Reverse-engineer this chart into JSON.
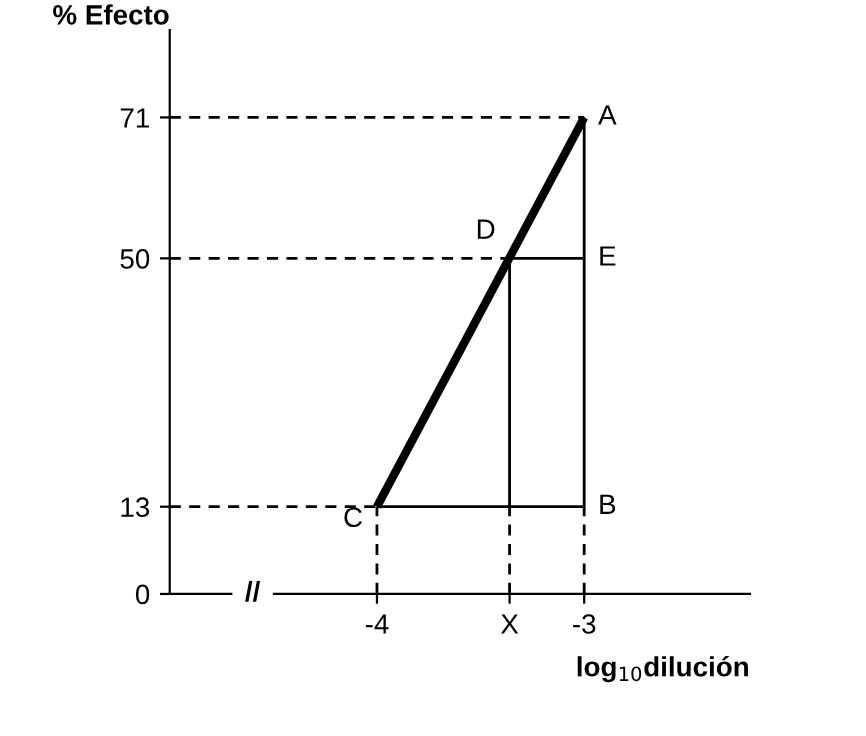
{
  "chart_data": {
    "type": "line",
    "xlabel": "log$_{10}$dilución",
    "ylabel": "% Efecto",
    "xlim": [
      -5,
      -2.2
    ],
    "ylim": [
      0,
      84
    ],
    "xticks": [
      -4,
      {
        "value": -3.36,
        "label": "X"
      },
      -3
    ],
    "yticks": [
      0,
      13,
      50,
      71
    ],
    "grid": false,
    "legend": false,
    "marker": "none",
    "series": [
      {
        "color": "#000000",
        "line_style": "solid",
        "x": [
          -4,
          -3
        ],
        "values": [
          13,
          71
        ]
      },
      {
        "color": "#000000",
        "line_style": "solid",
        "x": [
          -3,
          -3
        ],
        "values": [
          13,
          71
        ]
      },
      {
        "color": "#000000",
        "line_style": "solid",
        "x": [
          -4,
          -3
        ],
        "values": [
          13,
          13
        ]
      },
      {
        "color": "#000000",
        "line_style": "solid",
        "x": [
          -3.36,
          -3
        ],
        "values": [
          50,
          50
        ]
      },
      {
        "color": "#000000",
        "line_style": "solid",
        "x": [
          -3.36,
          -3.36
        ],
        "values": [
          13,
          50
        ]
      },
      {
        "color": "#000000",
        "line_style": "dashed",
        "x": [
          -5,
          -3
        ],
        "values": [
          71,
          71
        ]
      },
      {
        "color": "#000000",
        "line_style": "dashed",
        "x": [
          -5,
          -3.36
        ],
        "values": [
          50,
          50
        ]
      },
      {
        "color": "#000000",
        "line_style": "dashed",
        "x": [
          -5,
          -4
        ],
        "values": [
          13,
          13
        ]
      },
      {
        "color": "#000000",
        "line_style": "dashed",
        "x": [
          -4,
          -4
        ],
        "values": [
          0,
          13
        ]
      },
      {
        "color": "#000000",
        "line_style": "dashed",
        "x": [
          -3.36,
          -3.36
        ],
        "values": [
          0,
          13
        ]
      },
      {
        "color": "#000000",
        "line_style": "dashed",
        "x": [
          -3,
          -3
        ],
        "values": [
          0,
          13
        ]
      }
    ],
    "annotations": [
      {
        "text": "A",
        "x": -3,
        "y": 71
      },
      {
        "text": "B",
        "x": -3,
        "y": 13
      },
      {
        "text": "C",
        "x": -4,
        "y": 13
      },
      {
        "text": "D",
        "x": -3.36,
        "y": 50
      },
      {
        "text": "E",
        "x": -3,
        "y": 50
      },
      {
        "text": "//",
        "x": -4.6,
        "y": 0
      }
    ]
  }
}
